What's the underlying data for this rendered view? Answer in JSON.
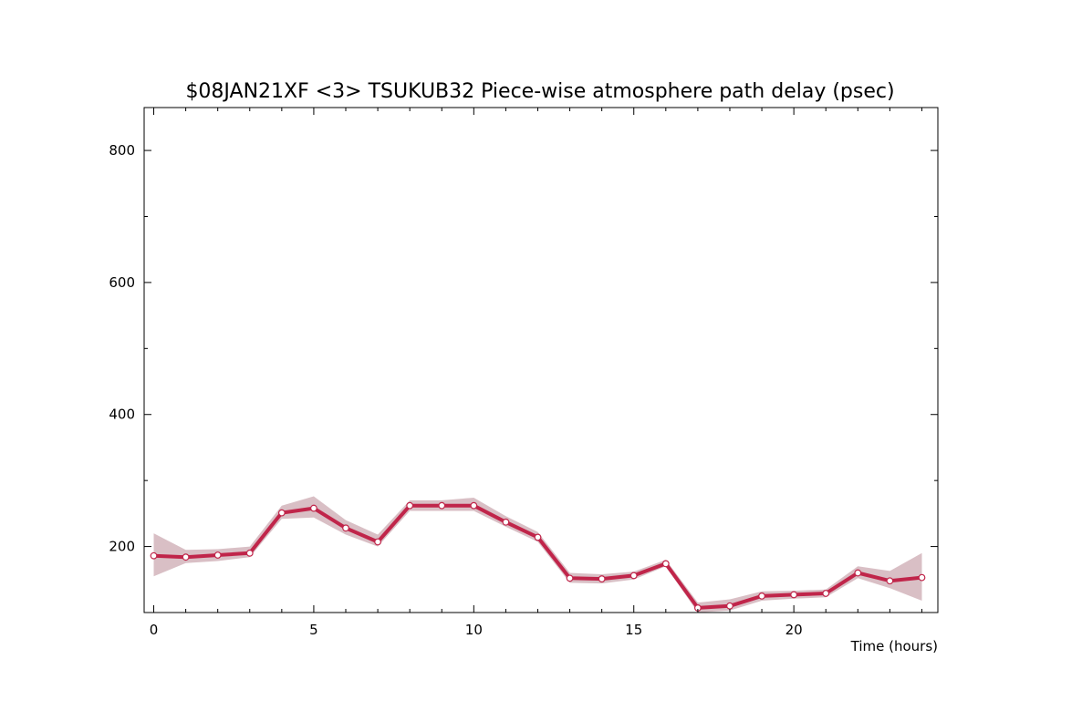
{
  "chart_data": {
    "type": "line",
    "title": "$08JAN21XF <3>  TSUKUB32  Piece-wise atmosphere path delay (psec)",
    "xlabel": "Time (hours)",
    "ylabel": "",
    "xlim": [
      -0.3,
      24.5
    ],
    "ylim": [
      100,
      865
    ],
    "x_ticks": [
      0,
      5,
      10,
      15,
      20
    ],
    "y_ticks": [
      200,
      400,
      600,
      800
    ],
    "grid": false,
    "colors": {
      "line": "#c0254a",
      "band": "#d9bfc5",
      "marker_fill": "#ffffff"
    },
    "series": [
      {
        "x": [
          0,
          1,
          2,
          3,
          4,
          5,
          6,
          7,
          8,
          9,
          10,
          11,
          12,
          13,
          14,
          15,
          16,
          17,
          18,
          19,
          20,
          21,
          22,
          23,
          24
        ],
        "values": [
          186,
          184,
          187,
          190,
          251,
          258,
          228,
          207,
          262,
          262,
          262,
          237,
          214,
          152,
          151,
          156,
          174,
          107,
          110,
          125,
          127,
          129,
          160,
          148,
          153
        ],
        "upper": [
          220,
          195,
          196,
          200,
          262,
          276,
          240,
          218,
          270,
          270,
          274,
          246,
          222,
          160,
          158,
          162,
          180,
          115,
          120,
          132,
          133,
          135,
          170,
          163,
          190
        ],
        "lower": [
          155,
          175,
          178,
          184,
          242,
          244,
          218,
          200,
          254,
          254,
          254,
          230,
          207,
          145,
          144,
          150,
          170,
          100,
          103,
          118,
          121,
          123,
          152,
          137,
          118
        ]
      }
    ]
  }
}
